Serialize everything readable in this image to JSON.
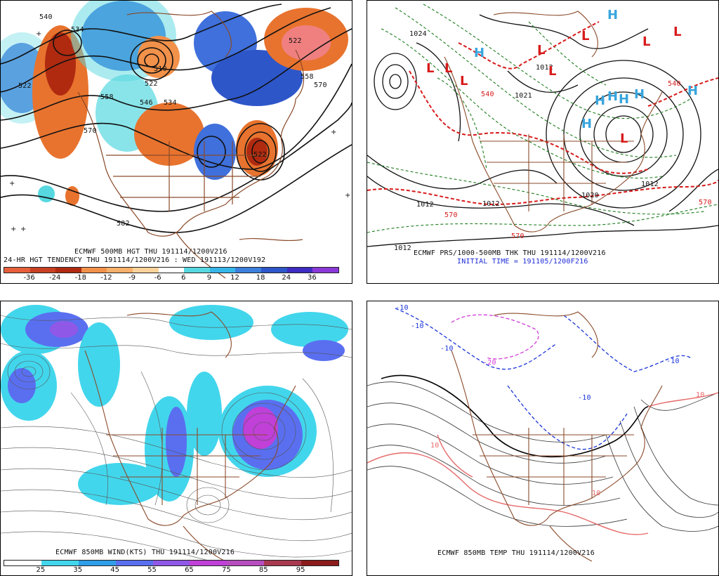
{
  "panels": {
    "tl": {
      "caption1": "ECMWF 500MB HGT THU 191114/1200V216",
      "caption2": "24-HR HGT TENDENCY THU 191114/1200V216 : WED 191113/1200V192",
      "contour_labels": [
        "540",
        "534",
        "522",
        "558",
        "546",
        "510",
        "522",
        "534",
        "570",
        "522",
        "558",
        "570",
        "522",
        "582"
      ],
      "colorbar": {
        "colors": [
          "#e5603b",
          "#c74022",
          "#b02a10",
          "#f2914a",
          "#f8b06b",
          "#fbd39a",
          "#ffffff",
          "#57d8e0",
          "#36b5e9",
          "#3d7fdc",
          "#2d56c9",
          "#3f2cc2",
          "#8a38d8"
        ],
        "labels": [
          "-36",
          "-24",
          "-18",
          "-12",
          "-9",
          "-6",
          "6",
          "9",
          "12",
          "18",
          "24",
          "36"
        ]
      }
    },
    "tr": {
      "caption1": "ECMWF PRS/1000-500MB THK THU 191114/1200V216",
      "caption2": "INITIAL TIME = 191105/1200F216",
      "labels_black": [
        "1012",
        "1012",
        "1012",
        "1012",
        "1024",
        "1021",
        "1012",
        "1020"
      ],
      "labels_red": [
        "540",
        "570",
        "570",
        "540",
        "570"
      ],
      "high_symbols": [
        "H",
        "H",
        "H",
        "H",
        "H",
        "H",
        "H",
        "H"
      ],
      "low_symbols": [
        "L",
        "L",
        "L",
        "L",
        "L",
        "L",
        "L",
        "L",
        "L"
      ]
    },
    "bl": {
      "caption1": "ECMWF 850MB WIND(KTS) THU 191114/1200V216",
      "colorbar": {
        "colors": [
          "#ffffff",
          "#42d6ec",
          "#2f9ee8",
          "#5a6ff0",
          "#9058e6",
          "#c040d8",
          "#b74ec0",
          "#a83a50",
          "#8c1c1c"
        ],
        "labels": [
          "25",
          "35",
          "45",
          "55",
          "65",
          "75",
          "85",
          "95"
        ]
      }
    },
    "br": {
      "caption1": "ECMWF 850MB TEMP THU 191114/1200V216",
      "labels": [
        "-10",
        "-10",
        "-10",
        "-20",
        "-10",
        "10",
        "10",
        "10",
        "-10"
      ]
    }
  },
  "colors": {
    "coast": "#8a4a2a",
    "warm_tendency": "#e8732e",
    "cold_tendency": "#3f70dc",
    "pressure_red": "#d81b1b",
    "thickness_green": "#1e7d1e",
    "high_cyan": "#38a5dd",
    "wind_light": "#3fd3e8",
    "temp_blue": "#1a34d8",
    "temp_magenta": "#d13ad8",
    "temp_pink": "#e66a6a"
  }
}
